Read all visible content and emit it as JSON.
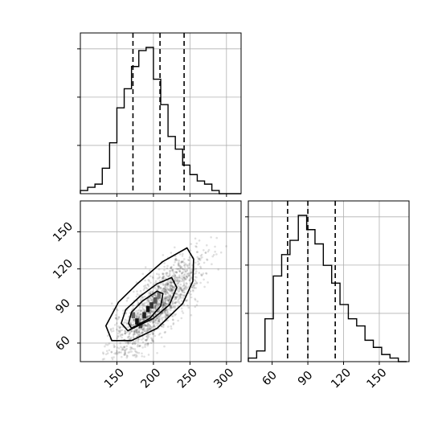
{
  "chart_data": [
    {
      "type": "histogram",
      "variable": "x",
      "xlim": [
        100,
        320
      ],
      "bin_edges": [
        100,
        110,
        120,
        130,
        140,
        150,
        160,
        170,
        180,
        190,
        200,
        210,
        220,
        230,
        240,
        250,
        260,
        270,
        280,
        290,
        300,
        310,
        320
      ],
      "counts": [
        1,
        2,
        3,
        8,
        16,
        27,
        33,
        40,
        45,
        46,
        36,
        28,
        18,
        14,
        9,
        6,
        4,
        3,
        1,
        0,
        0,
        0
      ],
      "quantile_lines": [
        172,
        209,
        242
      ],
      "x_ticks": [
        150,
        200,
        250,
        300
      ],
      "grid": true,
      "tick_labels_shown": false
    },
    {
      "type": "histogram",
      "variable": "y",
      "xlim": [
        40,
        175
      ],
      "bin_edges": [
        40,
        47,
        54,
        61,
        68,
        75,
        82,
        89,
        96,
        103,
        110,
        117,
        124,
        131,
        138,
        145,
        152,
        159,
        166,
        173
      ],
      "counts": [
        1,
        3,
        12,
        24,
        30,
        34,
        41,
        37,
        33,
        27,
        22,
        16,
        12,
        10,
        6,
        4,
        2,
        1,
        0
      ],
      "quantile_lines": [
        73,
        90,
        113
      ],
      "x_ticks": [
        60,
        90,
        120,
        150
      ],
      "x_tick_labels": [
        "60",
        "90",
        "120",
        "150"
      ],
      "grid": true
    },
    {
      "type": "scatter",
      "subtype": "2d-density-contour",
      "xlim": [
        100,
        320
      ],
      "ylim": [
        45,
        175
      ],
      "x_ticks": [
        150,
        200,
        250,
        300
      ],
      "x_tick_labels": [
        "150",
        "200",
        "250",
        "300"
      ],
      "y_ticks": [
        60,
        90,
        120,
        150
      ],
      "y_tick_labels": [
        "60",
        "90",
        "120",
        "150"
      ],
      "center": [
        205,
        90
      ],
      "correlation": 0.8,
      "contour_levels": [
        {
          "points": [
            [
              170,
              62
            ],
            [
              205,
              72
            ],
            [
              240,
              92
            ],
            [
              254,
              110
            ],
            [
              255,
              128
            ],
            [
              246,
              137
            ],
            [
              213,
              126
            ],
            [
              178,
              108
            ],
            [
              152,
              93
            ],
            [
              135,
              74
            ],
            [
              143,
              62
            ]
          ]
        },
        {
          "points": [
            [
              165,
              70
            ],
            [
              200,
              80
            ],
            [
              222,
              91
            ],
            [
              232,
              105
            ],
            [
              225,
              113
            ],
            [
              205,
              108
            ],
            [
              182,
              98
            ],
            [
              162,
              87
            ],
            [
              156,
              76
            ]
          ]
        },
        {
          "points": [
            [
              170,
              72
            ],
            [
              195,
              80
            ],
            [
              210,
              90
            ],
            [
              213,
              100
            ],
            [
              205,
              102
            ],
            [
              185,
              94
            ],
            [
              170,
              85
            ],
            [
              166,
              76
            ]
          ]
        }
      ],
      "density_cells": [
        {
          "x": 175,
          "y": 75,
          "shade": "#111111"
        },
        {
          "x": 185,
          "y": 80,
          "shade": "#222222"
        },
        {
          "x": 190,
          "y": 85,
          "shade": "#111111"
        },
        {
          "x": 195,
          "y": 88,
          "shade": "#333333"
        },
        {
          "x": 180,
          "y": 72,
          "shade": "#444444"
        },
        {
          "x": 200,
          "y": 92,
          "shade": "#555555"
        },
        {
          "x": 205,
          "y": 96,
          "shade": "#777777"
        },
        {
          "x": 170,
          "y": 80,
          "shade": "#666666"
        }
      ],
      "grid": true
    }
  ]
}
